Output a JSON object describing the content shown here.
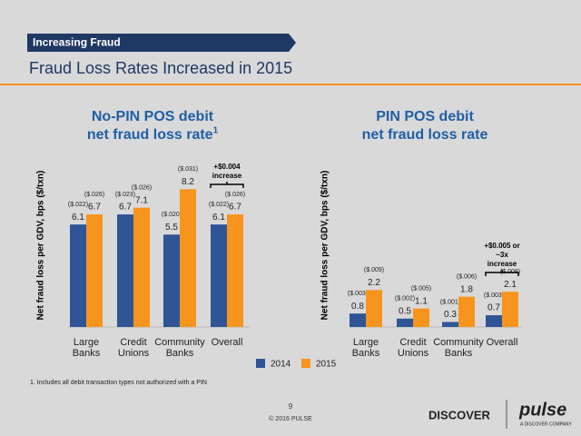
{
  "header": {
    "section": "Increasing Fraud",
    "title": "Fraud Loss Rates Increased in 2015"
  },
  "chart_data": [
    {
      "type": "bar",
      "title": "No-PIN POS debit",
      "subtitle": "net fraud loss rate",
      "title_note": "1",
      "y_label": "Net fraud loss per GDV, bps ($/txn)",
      "categories": [
        "Large Banks",
        "Credit Unions",
        "Community Banks",
        "Overall"
      ],
      "series": [
        {
          "name": "2014",
          "color": "#2f5597",
          "values": [
            6.1,
            6.7,
            5.5,
            6.1
          ],
          "txn_labels": [
            "($.022)",
            "($.023)",
            "($.020)",
            "($.022)"
          ]
        },
        {
          "name": "2015",
          "color": "#f7941d",
          "values": [
            6.7,
            7.1,
            8.2,
            6.7
          ],
          "txn_labels": [
            "($.026)",
            "($.026)",
            "($.031)",
            "($.026)"
          ]
        }
      ],
      "annotation": "+$0.004 increase"
    },
    {
      "type": "bar",
      "title": "PIN POS debit",
      "subtitle": "net fraud loss rate",
      "y_label": "Net fraud loss per GDV, bps ($/txn)",
      "categories": [
        "Large Banks",
        "Credit Unions",
        "Community Banks",
        "Overall"
      ],
      "series": [
        {
          "name": "2014",
          "color": "#2f5597",
          "values": [
            0.8,
            0.5,
            0.3,
            0.7
          ],
          "txn_labels": [
            "($.003)",
            "($.002)",
            "($.001)",
            "($.003)"
          ]
        },
        {
          "name": "2015",
          "color": "#f7941d",
          "values": [
            2.2,
            1.1,
            1.8,
            2.1
          ],
          "txn_labels": [
            "($.009)",
            "($.005)",
            "($.006)",
            "($.008)"
          ]
        }
      ],
      "annotation": "+$0.005 or ~3x increase"
    }
  ],
  "footnote": "1. Includes all debit transaction types not authorized with a PIN",
  "page_number": "9",
  "copyright": "© 2016 PULSE",
  "logos": {
    "discover": "DISCOVER",
    "pulse": "pulse",
    "pulse_tagline": "A DISCOVER COMPANY"
  }
}
